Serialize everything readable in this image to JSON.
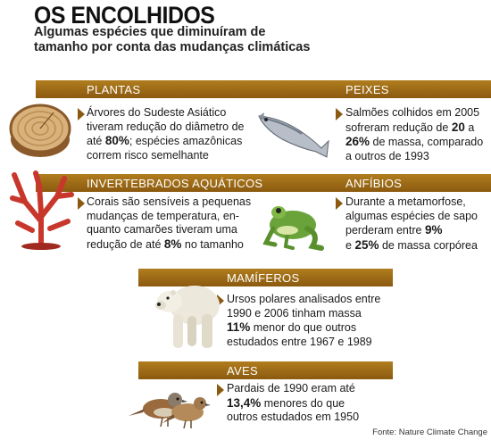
{
  "header": {
    "title": "OS ENCOLHIDOS",
    "subtitle_line1": "Algumas espécies que diminuíram de",
    "subtitle_line2": "tamanho por conta das mudanças climáticas"
  },
  "sections": {
    "plantas": {
      "label": "PLANTAS",
      "l1": "Árvores do Sudeste Asiático",
      "l2": "tiveram redução do diâmetro de",
      "l3a": "até ",
      "l3b": "80%",
      "l3c": "; espécies amazônicas",
      "l4": "correm risco semelhante"
    },
    "peixes": {
      "label": "PEIXES",
      "l1": "Salmões colhidos em 2005",
      "l2a": "sofreram redução de ",
      "l2b": "20",
      "l2c": " a",
      "l3a": "26%",
      "l3b": " de massa, comparado",
      "l4": "a outros de 1993"
    },
    "invertebrados": {
      "label": "INVERTEBRADOS AQUÁTICOS",
      "l1": "Corais são sensíveis a pequenas",
      "l2": "mudanças de temperatura, en-",
      "l3": "quanto camarões tiveram uma",
      "l4a": "redução de até ",
      "l4b": "8%",
      "l4c": " no tamanho"
    },
    "anfibios": {
      "label": "ANFÍBIOS",
      "l1": "Durante a metamorfose,",
      "l2": "algumas espécies de sapo",
      "l3a": "perderam entre ",
      "l3b": "9%",
      "l4a": "e ",
      "l4b": "25%",
      "l4c": " de massa corpórea"
    },
    "mamiferos": {
      "label": "MAMÍFEROS",
      "l1": "Ursos polares analisados entre",
      "l2": "1990 e 2006 tinham massa",
      "l3a": "11%",
      "l3b": " menor do que outros",
      "l4": "estudados entre 1967 e 1989"
    },
    "aves": {
      "label": "AVES",
      "l1": "Pardais de 1990 eram até",
      "l2a": "13,4%",
      "l2b": " menores do que",
      "l3": "outros estudados em 1950"
    }
  },
  "source": "Fonte: Nature Climate Change",
  "colors": {
    "band": "#8b5a10",
    "band_light": "#b07d1e",
    "text": "#1a1a1a"
  },
  "icons": [
    "tree-stump-icon",
    "salmon-icon",
    "coral-icon",
    "frog-icon",
    "polar-bear-icon",
    "sparrows-icon"
  ]
}
